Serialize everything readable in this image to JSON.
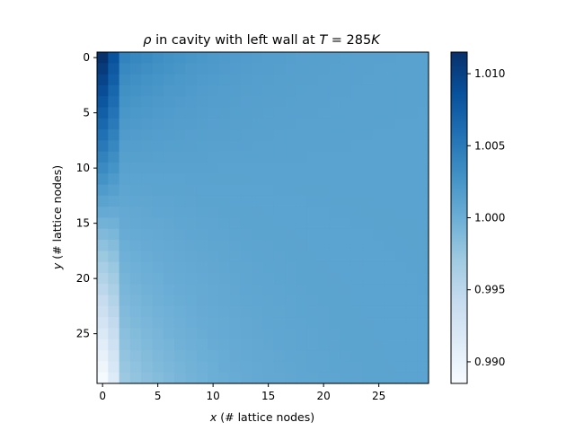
{
  "chart_data": {
    "type": "heatmap",
    "title": "ρ in cavity with left wall at T = 285K",
    "title_parts": {
      "rho": "ρ",
      "mid": " in cavity with left wall at ",
      "T": "T",
      "eq": " = 285",
      "K": "K"
    },
    "xlabel": "(# lattice nodes)",
    "xlabel_var": "x",
    "ylabel": "(# lattice nodes)",
    "ylabel_var": "y",
    "grid_size": [
      30,
      30
    ],
    "xlim": [
      -0.5,
      29.5
    ],
    "ylim": [
      29.5,
      -0.5
    ],
    "x_ticks": [
      0,
      5,
      10,
      15,
      20,
      25
    ],
    "y_ticks": [
      0,
      5,
      10,
      15,
      20,
      25
    ],
    "colorbar": {
      "label": "",
      "range": [
        0.9885,
        1.0115
      ],
      "ticks": [
        "0.990",
        "0.995",
        "1.000",
        "1.005",
        "1.010"
      ],
      "tick_values": [
        0.99,
        0.995,
        1.0,
        1.005,
        1.01
      ]
    },
    "colormap": "Blues",
    "grid": false,
    "field_model": {
      "col0_top": 1.0113,
      "col0_bottom": 0.9887,
      "col1_top": 1.0085,
      "col1_bottom": 0.9915,
      "interior_base": 1.0012,
      "interior_top_gradient": 0.003,
      "interior_bottom_deficit": 0.004
    }
  }
}
